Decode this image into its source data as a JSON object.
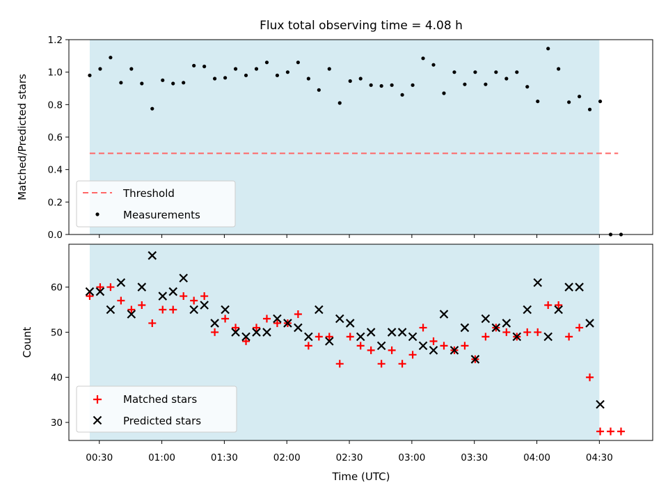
{
  "chart_data": {
    "type": "scatter",
    "title": "Flux total observing time = 4.08 h",
    "xlabel": "Time (UTC)",
    "x_ticks": [
      "00:30",
      "01:00",
      "01:30",
      "02:00",
      "02:30",
      "03:00",
      "03:30",
      "04:00",
      "04:30"
    ],
    "x_tick_hours": [
      0.5,
      1.0,
      1.5,
      2.0,
      2.5,
      3.0,
      3.5,
      4.0,
      4.5
    ],
    "xlim": [
      0.2566,
      4.9266
    ],
    "observing_window": [
      0.4233,
      4.5
    ],
    "shade_color": "#add8e6",
    "panels": [
      {
        "name": "ratio",
        "ylabel": "Matched/Predicted stars",
        "ylim": [
          0,
          1.2
        ],
        "y_ticks": [
          "0.0",
          "0.2",
          "0.4",
          "0.6",
          "0.8",
          "1.0",
          "1.2"
        ],
        "threshold": {
          "label": "Threshold",
          "value": 0.5,
          "x": [
            0.4233,
            4.65
          ],
          "color": "#ff6666"
        },
        "series": [
          {
            "name": "Measurements",
            "color": "#000000",
            "x": [
              0.4233,
              0.5067,
              0.59,
              0.6733,
              0.7567,
              0.84,
              0.9233,
              1.0067,
              1.09,
              1.1733,
              1.2567,
              1.34,
              1.4233,
              1.5067,
              1.59,
              1.6733,
              1.7567,
              1.84,
              1.9233,
              2.0067,
              2.09,
              2.1733,
              2.2567,
              2.34,
              2.4233,
              2.5067,
              2.59,
              2.6733,
              2.7567,
              2.84,
              2.9233,
              3.0067,
              3.09,
              3.1733,
              3.2567,
              3.34,
              3.4233,
              3.5067,
              3.59,
              3.6733,
              3.7567,
              3.84,
              3.9233,
              4.0067,
              4.09,
              4.1733,
              4.2567,
              4.34,
              4.4233,
              4.5067,
              4.59,
              4.6733
            ],
            "y": [
              0.98,
              1.02,
              1.09,
              0.935,
              1.02,
              0.93,
              0.775,
              0.95,
              0.93,
              0.935,
              1.04,
              1.035,
              0.96,
              0.965,
              1.02,
              0.98,
              1.02,
              1.06,
              0.98,
              1.0,
              1.06,
              0.96,
              0.89,
              1.02,
              0.81,
              0.945,
              0.96,
              0.92,
              0.915,
              0.92,
              0.86,
              0.92,
              1.085,
              1.045,
              0.87,
              1.0,
              0.925,
              1.0,
              0.925,
              1.0,
              0.96,
              1.0,
              0.91,
              0.82,
              1.145,
              1.02,
              0.815,
              0.85,
              0.77,
              0.82,
              0.0,
              0.0
            ]
          }
        ]
      },
      {
        "name": "count",
        "ylabel": "Count",
        "ylim": [
          26,
          69.5
        ],
        "y_ticks": [
          "30",
          "40",
          "50",
          "60"
        ],
        "y_tick_values": [
          30,
          40,
          50,
          60
        ],
        "series": [
          {
            "name": "Matched stars",
            "marker": "plus",
            "color": "#ff0000",
            "x": [
              0.4233,
              0.5067,
              0.59,
              0.6733,
              0.7567,
              0.84,
              0.9233,
              1.0067,
              1.09,
              1.1733,
              1.2567,
              1.34,
              1.4233,
              1.5067,
              1.59,
              1.6733,
              1.7567,
              1.84,
              1.9233,
              2.0067,
              2.09,
              2.1733,
              2.2567,
              2.34,
              2.4233,
              2.5067,
              2.59,
              2.6733,
              2.7567,
              2.84,
              2.9233,
              3.0067,
              3.09,
              3.1733,
              3.2567,
              3.34,
              3.4233,
              3.5067,
              3.59,
              3.6733,
              3.7567,
              3.84,
              3.9233,
              4.0067,
              4.09,
              4.1733,
              4.2567,
              4.34,
              4.4233,
              4.5067,
              4.59,
              4.6733
            ],
            "y": [
              58,
              60,
              60,
              57,
              55,
              56,
              52,
              55,
              55,
              58,
              57,
              58,
              50,
              53,
              51,
              48,
              51,
              53,
              52,
              52,
              54,
              47,
              49,
              49,
              43,
              49,
              47,
              46,
              43,
              46,
              43,
              45,
              51,
              48,
              47,
              46,
              47,
              44,
              49,
              51,
              50,
              49,
              50,
              50,
              56,
              56,
              49,
              51,
              40,
              28,
              28,
              28
            ]
          },
          {
            "name": "Predicted stars",
            "marker": "x",
            "color": "#000000",
            "x": [
              0.4233,
              0.5067,
              0.59,
              0.6733,
              0.7567,
              0.84,
              0.9233,
              1.0067,
              1.09,
              1.1733,
              1.2567,
              1.34,
              1.4233,
              1.5067,
              1.59,
              1.6733,
              1.7567,
              1.84,
              1.9233,
              2.0067,
              2.09,
              2.1733,
              2.2567,
              2.34,
              2.4233,
              2.5067,
              2.59,
              2.6733,
              2.7567,
              2.84,
              2.9233,
              3.0067,
              3.09,
              3.1733,
              3.2567,
              3.34,
              3.4233,
              3.5067,
              3.59,
              3.6733,
              3.7567,
              3.84,
              3.9233,
              4.0067,
              4.09,
              4.1733,
              4.2567,
              4.34,
              4.4233,
              4.5067
            ],
            "y": [
              59,
              59,
              55,
              61,
              54,
              60,
              67,
              58,
              59,
              62,
              55,
              56,
              52,
              55,
              50,
              49,
              50,
              50,
              53,
              52,
              51,
              49,
              55,
              48,
              53,
              52,
              49,
              50,
              47,
              50,
              50,
              49,
              47,
              46,
              54,
              46,
              51,
              44,
              53,
              51,
              52,
              49,
              55,
              61,
              49,
              55,
              60,
              60,
              52,
              34
            ]
          }
        ]
      }
    ],
    "legends": [
      {
        "panel": "ratio",
        "location": "lower-left",
        "entries": [
          "Threshold",
          "Measurements"
        ]
      },
      {
        "panel": "count",
        "location": "lower-left",
        "entries": [
          "Matched stars",
          "Predicted stars"
        ]
      }
    ],
    "grid": false
  }
}
